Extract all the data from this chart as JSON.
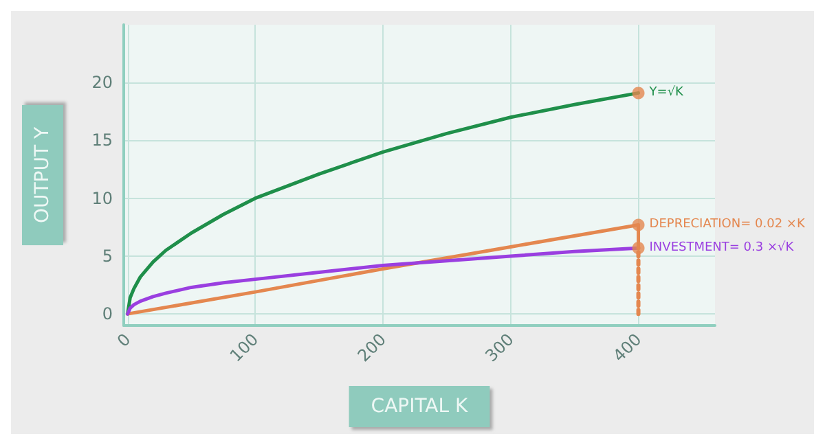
{
  "chart_data": {
    "type": "line",
    "xlabel": "CAPITAL K",
    "ylabel": "OUTPUT Y",
    "xlim": [
      -3,
      460
    ],
    "ylim": [
      -1,
      25
    ],
    "xticks": [
      0,
      100,
      200,
      300,
      400
    ],
    "yticks": [
      0,
      5,
      10,
      15,
      20
    ],
    "grid": true,
    "marker": "none",
    "line_style": "solid",
    "series": [
      {
        "name": "Y=√K",
        "color": "#1f8f4a",
        "x": [
          0,
          2,
          5,
          10,
          20,
          30,
          50,
          75,
          100,
          150,
          200,
          250,
          300,
          350,
          400
        ],
        "values": [
          0,
          1.4,
          2.2,
          3.2,
          4.5,
          5.5,
          7.0,
          8.6,
          10.0,
          12.1,
          14.0,
          15.6,
          17.0,
          18.1,
          19.1
        ]
      },
      {
        "name": "DEPRECIATION= 0.02 ×K",
        "color": "#e4874f",
        "x": [
          0,
          100,
          200,
          300,
          400
        ],
        "values": [
          0,
          1.9,
          3.9,
          5.8,
          7.7
        ]
      },
      {
        "name": "INVESTMENT= 0.3 ×√K",
        "color": "#9a3fe0",
        "x": [
          0,
          2,
          5,
          10,
          20,
          30,
          50,
          75,
          100,
          150,
          200,
          250,
          300,
          350,
          400
        ],
        "values": [
          0,
          0.5,
          0.8,
          1.1,
          1.5,
          1.8,
          2.3,
          2.7,
          3.0,
          3.6,
          4.2,
          4.6,
          5.0,
          5.4,
          5.7
        ]
      },
      {
        "color": "#e4874f",
        "x": [
          400,
          400
        ],
        "values": [
          0,
          5.7
        ],
        "line_style": "dotted"
      },
      {
        "color": "#e4874f",
        "x": [
          400,
          400
        ],
        "values": [
          5.7,
          7.7
        ]
      },
      {
        "type": "scatter",
        "color": "#e4874f",
        "marker": "circle",
        "x": [
          400,
          400,
          400
        ],
        "values": [
          19.1,
          7.7,
          5.7
        ]
      }
    ]
  }
}
